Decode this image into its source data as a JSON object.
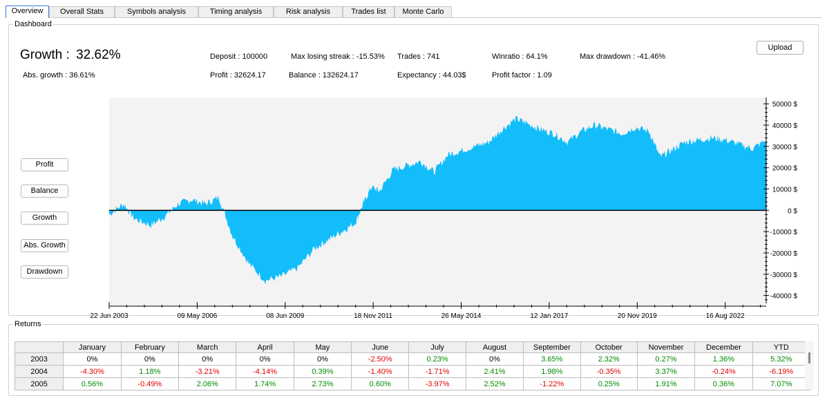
{
  "tabs": [
    {
      "label": "Overview",
      "active": true
    },
    {
      "label": "Overall Stats",
      "active": false
    },
    {
      "label": "Symbols analysis",
      "active": false
    },
    {
      "label": "Timing analysis",
      "active": false
    },
    {
      "label": "Risk analysis",
      "active": false
    },
    {
      "label": "Trades list",
      "active": false
    },
    {
      "label": "Monte Carlo",
      "active": false
    }
  ],
  "dashboard": {
    "legend": "Dashboard",
    "growth_label": "Growth :",
    "growth_value": "32.62%",
    "abs_growth": "Abs. growth :  36.61%",
    "deposit": "Deposit : 100000",
    "profit": "Profit :  32624.17",
    "max_losing_streak": "Max losing streak : -15.53%",
    "balance": "Balance :  132624.17",
    "trades": "Trades :  741",
    "expectancy": "Expectancy :  44.03$",
    "winratio": "Winratio :  64.1%",
    "profit_factor": "Profit factor :  1.09",
    "max_drawdown": "Max drawdown :  -41.46%",
    "upload_label": "Upload",
    "side_buttons": [
      "Profit",
      "Balance",
      "Growth",
      "Abs. Growth",
      "Drawdown"
    ]
  },
  "chart_data": {
    "type": "area",
    "series": [
      {
        "x": [
          "2003-06-22",
          "2003-12-01",
          "2004-04-01",
          "2004-10-01",
          "2005-03-01",
          "2005-08-01",
          "2006-01-01",
          "2006-06-01",
          "2006-11-01",
          "2007-04-01",
          "2007-10-01",
          "2008-04-01",
          "2008-10-01",
          "2009-04-01",
          "2009-10-01",
          "2010-03-01",
          "2010-08-01",
          "2011-01-01",
          "2011-04-01",
          "2011-07-01",
          "2011-10-01",
          "2012-03-01",
          "2012-08-01",
          "2013-01-01",
          "2013-06-01",
          "2013-11-01",
          "2014-04-01",
          "2014-09-01",
          "2015-02-01",
          "2015-07-01",
          "2015-12-01",
          "2016-04-01",
          "2016-09-01",
          "2017-02-01",
          "2017-07-01",
          "2017-12-01",
          "2018-05-01",
          "2018-10-01",
          "2019-03-01",
          "2019-08-01",
          "2020-01-01",
          "2020-05-01",
          "2020-09-01",
          "2021-02-01",
          "2021-07-01",
          "2021-12-01",
          "2022-05-01",
          "2022-10-01",
          "2023-03-01",
          "2023-08-01"
        ],
        "values": [
          -2000,
          3000,
          -4000,
          -7000,
          -3000,
          3000,
          5000,
          3000,
          6000,
          -12000,
          -25000,
          -33000,
          -31000,
          -27000,
          -18000,
          -14000,
          -10000,
          -6000,
          3000,
          11000,
          9000,
          19000,
          21000,
          23000,
          18000,
          26000,
          28000,
          30000,
          32000,
          38000,
          43000,
          41000,
          38000,
          36000,
          32000,
          37000,
          40000,
          38000,
          36000,
          39000,
          37000,
          25000,
          28000,
          32000,
          33000,
          34000,
          33000,
          31000,
          29000,
          33000
        ]
      }
    ],
    "x_tick_labels": [
      "22 Jun 2003",
      "09 May 2006",
      "08 Jun 2009",
      "18 Nov 2011",
      "26 May 2014",
      "12 Jan 2017",
      "20 Nov 2019",
      "16 Aug 2022"
    ],
    "y_tick_labels": [
      "50000 $",
      "40000 $",
      "30000 $",
      "20000 $",
      "10000 $",
      "0 $",
      "-10000 $",
      "-20000 $",
      "-30000 $",
      "-40000 $"
    ],
    "ylim": [
      -45000,
      53000
    ],
    "fill_color": "#12bdfa",
    "zero_line_color": "#000000",
    "background": "#f3f3f3"
  },
  "returns": {
    "legend": "Returns",
    "headers": [
      "",
      "January",
      "February",
      "March",
      "April",
      "May",
      "June",
      "July",
      "August",
      "September",
      "October",
      "November",
      "December",
      "YTD"
    ],
    "rows": [
      {
        "year": "2003",
        "cells": [
          "0%",
          "0%",
          "0%",
          "0%",
          "0%",
          "-2.50%",
          "0.23%",
          "0%",
          "3.65%",
          "2.32%",
          "0.27%",
          "1.36%",
          "5.32%"
        ]
      },
      {
        "year": "2004",
        "cells": [
          "-4.30%",
          "1.18%",
          "-3.21%",
          "-4.14%",
          "0.39%",
          "-1.40%",
          "-1.71%",
          "2.41%",
          "1.98%",
          "-0.35%",
          "3.37%",
          "-0.24%",
          "-6.19%"
        ]
      },
      {
        "year": "2005",
        "cells": [
          "0.56%",
          "-0.49%",
          "2.06%",
          "1.74%",
          "2.73%",
          "0.60%",
          "-3.97%",
          "2.52%",
          "-1.22%",
          "0.25%",
          "1.91%",
          "0.36%",
          "7.07%"
        ]
      }
    ]
  }
}
